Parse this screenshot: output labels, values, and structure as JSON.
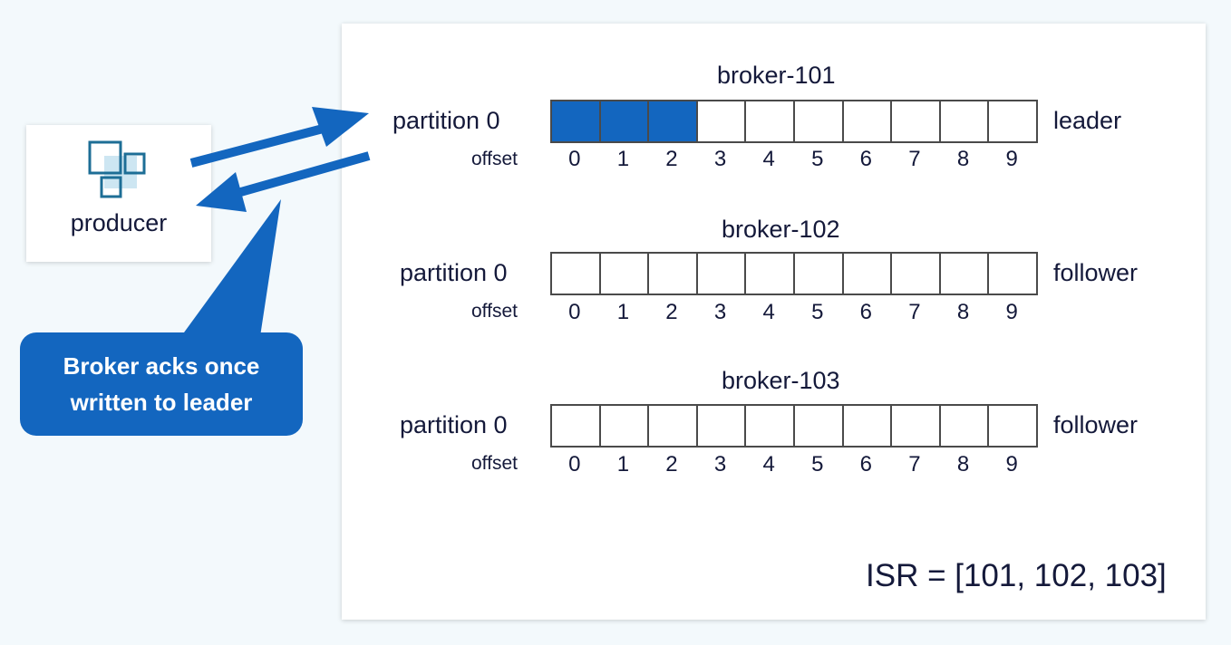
{
  "producer": {
    "label": "producer",
    "icon": "squares-icon"
  },
  "callout": {
    "text": "Broker acks once\nwritten to leader",
    "color": "#1366bf"
  },
  "brokers": [
    {
      "name": "broker-101",
      "partition_label": "partition 0",
      "offset_label": "offset",
      "role": "leader",
      "offsets": [
        "0",
        "1",
        "2",
        "3",
        "4",
        "5",
        "6",
        "7",
        "8",
        "9"
      ],
      "written_count": 3
    },
    {
      "name": "broker-102",
      "partition_label": "partition 0",
      "offset_label": "offset",
      "role": "follower",
      "offsets": [
        "0",
        "1",
        "2",
        "3",
        "4",
        "5",
        "6",
        "7",
        "8",
        "9"
      ],
      "written_count": 0
    },
    {
      "name": "broker-103",
      "partition_label": "partition 0",
      "offset_label": "offset",
      "role": "follower",
      "offsets": [
        "0",
        "1",
        "2",
        "3",
        "4",
        "5",
        "6",
        "7",
        "8",
        "9"
      ],
      "written_count": 0
    }
  ],
  "isr": "ISR = [101, 102, 103]",
  "colors": {
    "accent": "#1366bf",
    "text": "#14193a",
    "background": "#f3f9fc"
  }
}
